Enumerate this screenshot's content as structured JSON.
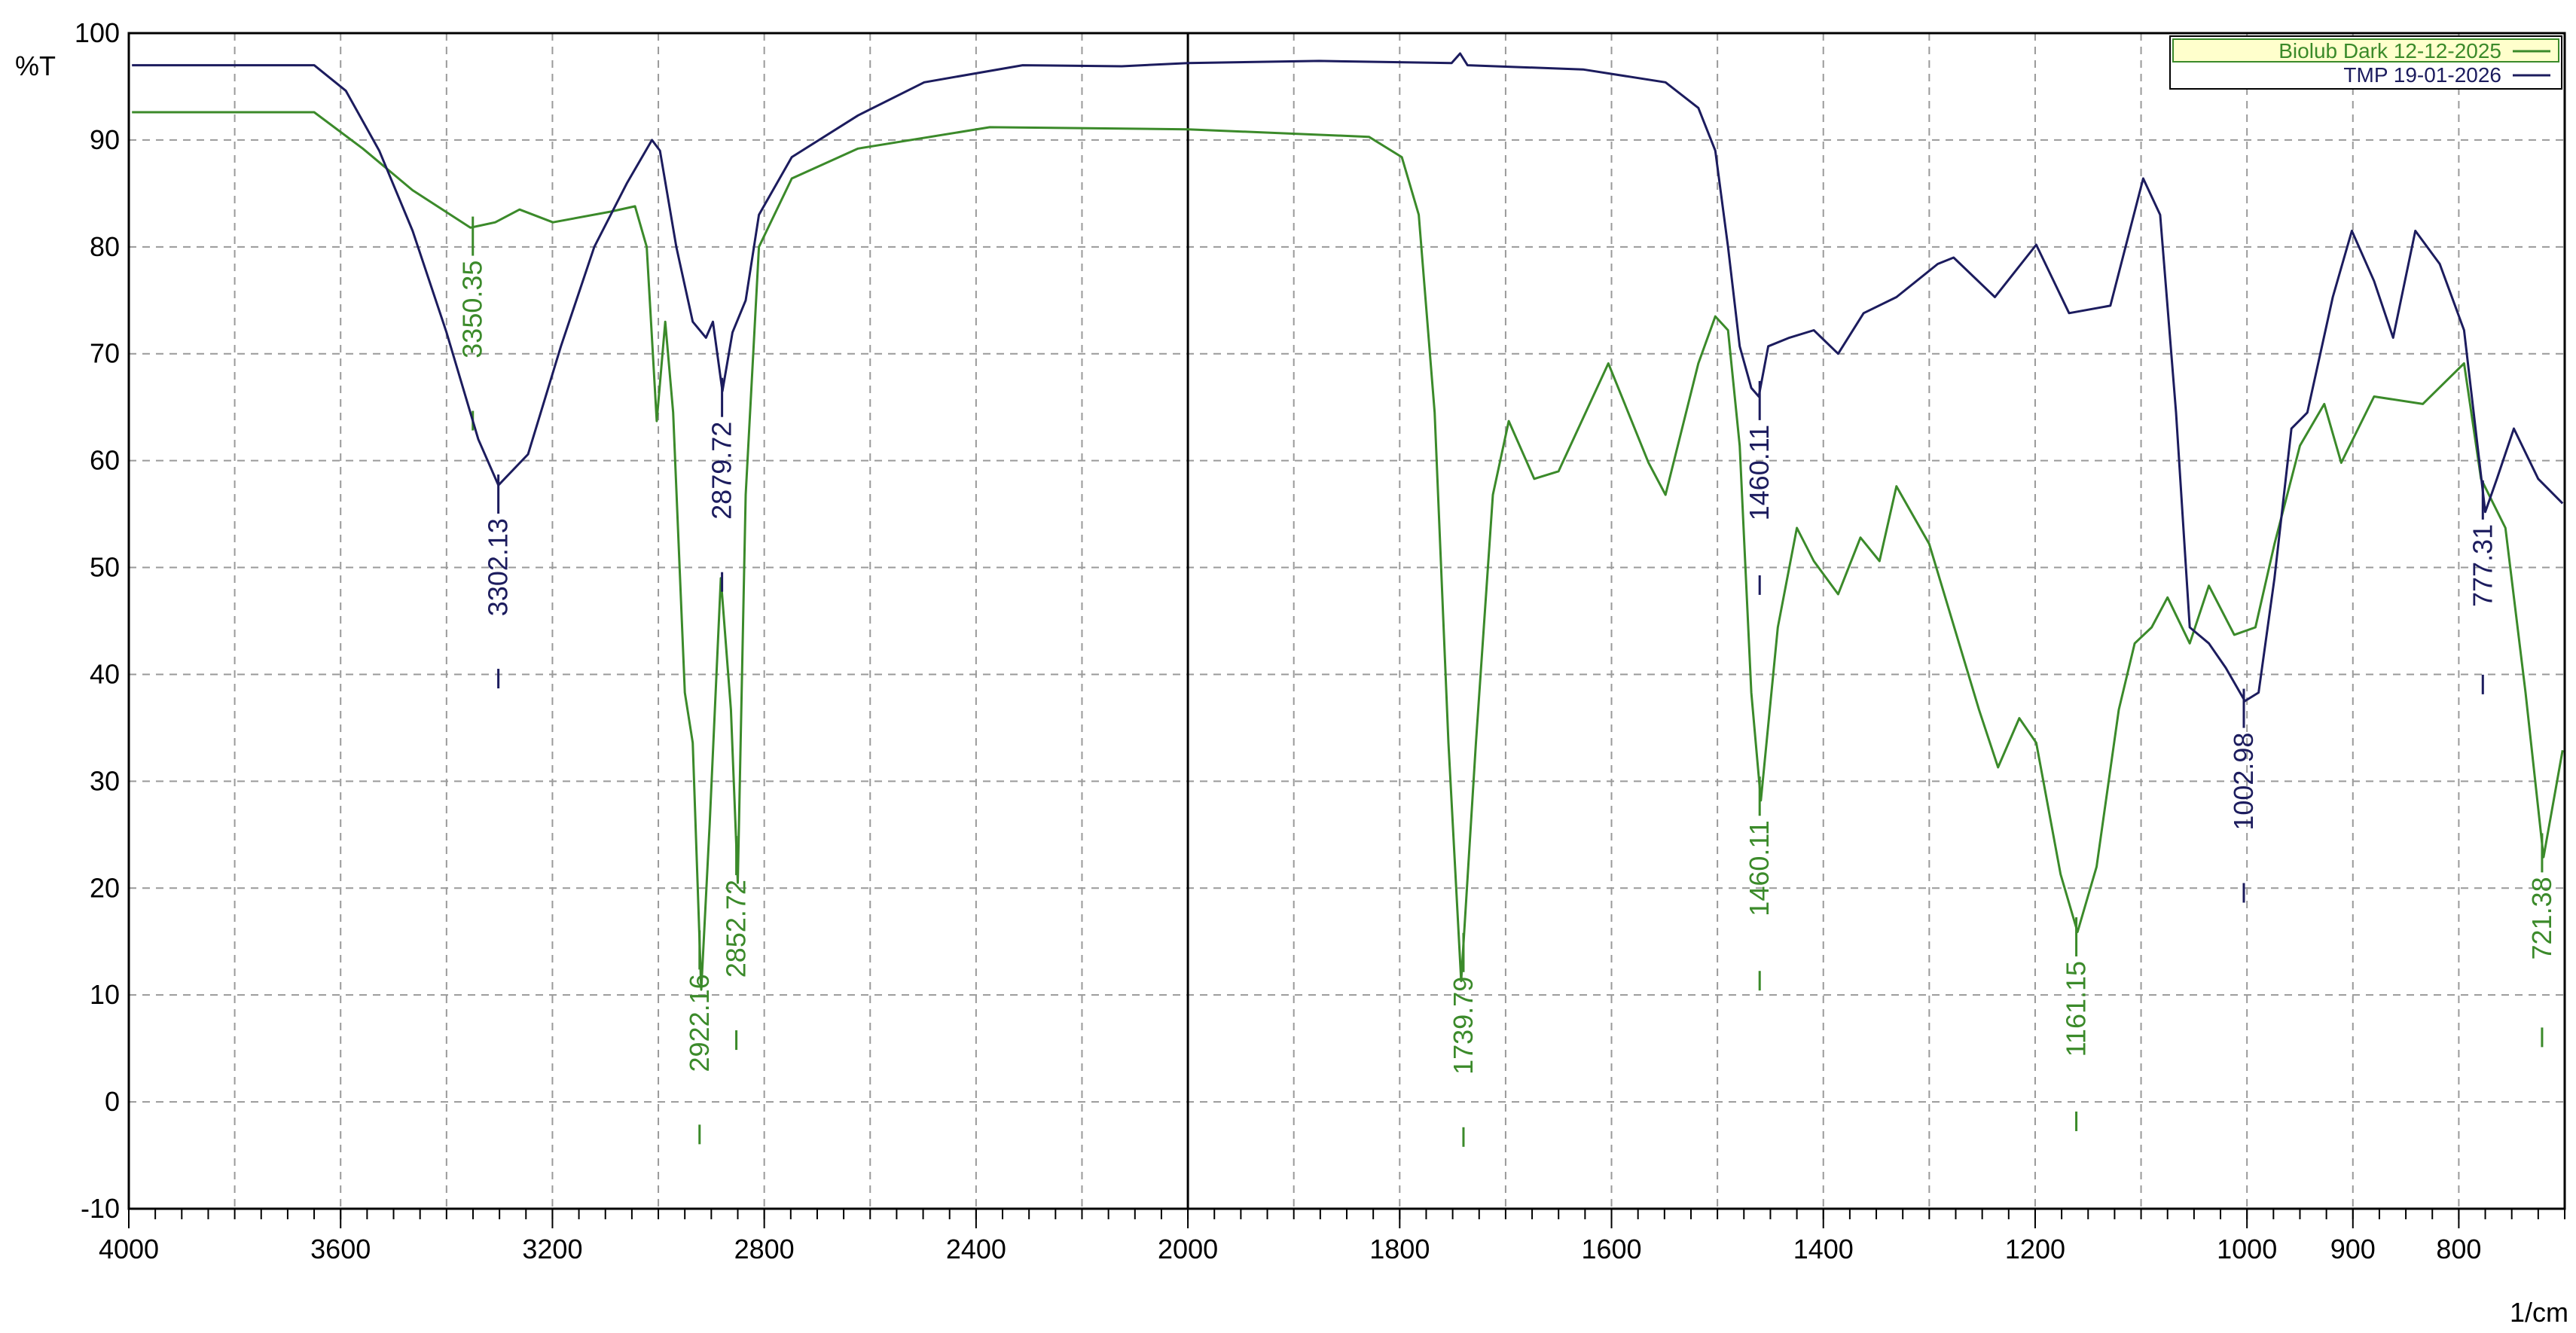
{
  "chart_data": {
    "type": "line",
    "y_label": "%T",
    "x_label": "1/cm",
    "xlim": [
      4000,
      700
    ],
    "x_break": 2000,
    "x_break_zoom": 2,
    "ylim": [
      -10,
      100
    ],
    "yticks": [
      -10,
      0,
      10,
      20,
      30,
      40,
      50,
      60,
      70,
      80,
      90,
      100
    ],
    "xticks": [
      4000,
      3600,
      3200,
      2800,
      2400,
      2000,
      1800,
      1600,
      1400,
      1200,
      1000,
      900,
      800
    ],
    "xgrid": [
      3800,
      3600,
      3400,
      3200,
      3000,
      2800,
      2600,
      2400,
      2200,
      1900,
      1800,
      1700,
      1600,
      1500,
      1400,
      1300,
      1200,
      1100,
      1000,
      900,
      800
    ],
    "x_minor_step": 50,
    "grid": true,
    "legend": "top-right",
    "series": [
      {
        "name": "Biolub Dark 12-12-2025",
        "color": "#3b8a2a",
        "x": [
          3994,
          3650,
          3558,
          3464,
          3355,
          3308,
          3262,
          3199,
          3090,
          3044,
          3022,
          3003,
          2987,
          2972,
          2950,
          2935,
          2919,
          2903,
          2882,
          2863,
          2850,
          2835,
          2810,
          2748,
          2623,
          2374,
          2000,
          1829,
          1798,
          1782,
          1767,
          1754,
          1742,
          1728,
          1712,
          1697,
          1673,
          1650,
          1603,
          1565,
          1549,
          1518,
          1502,
          1490,
          1479,
          1468,
          1459,
          1443,
          1425,
          1409,
          1386,
          1365,
          1347,
          1331,
          1300,
          1253,
          1235,
          1215,
          1199,
          1176,
          1160,
          1142,
          1121,
          1106,
          1090,
          1075,
          1054,
          1036,
          1012,
          992,
          974,
          950,
          927,
          911,
          880,
          834,
          795,
          779,
          756,
          737,
          720,
          702
        ],
        "values": [
          92.6,
          92.6,
          89.2,
          85.3,
          81.8,
          82.3,
          83.5,
          82.3,
          83.3,
          83.8,
          80,
          63.7,
          73,
          64.5,
          38.3,
          33.6,
          10.5,
          26,
          49,
          36.7,
          20.5,
          56.8,
          80,
          86.4,
          89.2,
          91.2,
          91,
          90.3,
          88.4,
          83,
          64.5,
          33.6,
          11.3,
          33.6,
          56.8,
          63.7,
          58.3,
          59,
          69.1,
          59.8,
          56.8,
          69.1,
          73.5,
          72.2,
          61.4,
          38.3,
          28.2,
          44.4,
          53.7,
          50.6,
          47.5,
          52.8,
          50.6,
          57.6,
          52.2,
          36.7,
          31.3,
          35.9,
          33.6,
          21.3,
          15.9,
          22,
          36.7,
          42.9,
          44.4,
          47.2,
          42.9,
          48.3,
          43.7,
          44.4,
          52.2,
          61.4,
          65.3,
          59.8,
          66,
          65.3,
          69.1,
          58.3,
          53.7,
          38.3,
          22.9,
          32.9
        ],
        "peaks": [
          3350.35,
          2922.16,
          2852.72,
          1739.79,
          1460.11,
          1161.15,
          721.38
        ]
      },
      {
        "name": "TMP 19-01-2026",
        "color": "#1c1c5e",
        "x": [
          3994,
          3650,
          3590,
          3527,
          3464,
          3400,
          3340,
          3302,
          3246,
          3184,
          3121,
          3059,
          3012,
          2997,
          2966,
          2935,
          2910,
          2897,
          2879,
          2860,
          2835,
          2810,
          2748,
          2623,
          2498,
          2312,
          2125,
          2000,
          1876,
          1751,
          1743,
          1736,
          1627,
          1549,
          1518,
          1502,
          1490,
          1479,
          1468,
          1461,
          1452,
          1432,
          1409,
          1386,
          1362,
          1331,
          1292,
          1277,
          1238,
          1199,
          1168,
          1129,
          1098,
          1082,
          1067,
          1054,
          1036,
          1020,
          1002,
          989,
          974,
          958,
          943,
          919,
          901,
          880,
          862,
          841,
          818,
          795,
          775,
          764,
          748,
          725,
          702
        ],
        "values": [
          97,
          97,
          94.6,
          89,
          81.5,
          72,
          62,
          57.7,
          60.6,
          70.7,
          80,
          86,
          90,
          89,
          80,
          73,
          71.5,
          73,
          66.5,
          72,
          75,
          83,
          88.4,
          92.3,
          95.4,
          97,
          96.9,
          97.2,
          97.4,
          97.2,
          98.1,
          97,
          96.6,
          95.4,
          93,
          89,
          80,
          70.7,
          66.8,
          66,
          70.7,
          71.5,
          72.2,
          70,
          73.8,
          75.3,
          78.4,
          79,
          75.3,
          80.2,
          73.8,
          74.5,
          86.4,
          83,
          64.5,
          44.4,
          42.9,
          40.6,
          37.5,
          38.3,
          49,
          63,
          64.5,
          75.3,
          81.5,
          76.8,
          71.5,
          81.5,
          78.4,
          72.2,
          55.2,
          58.3,
          63,
          58.3,
          56
        ],
        "peaks": [
          3302.13,
          2879.72,
          1460.11,
          1002.98,
          777.31
        ]
      }
    ]
  }
}
